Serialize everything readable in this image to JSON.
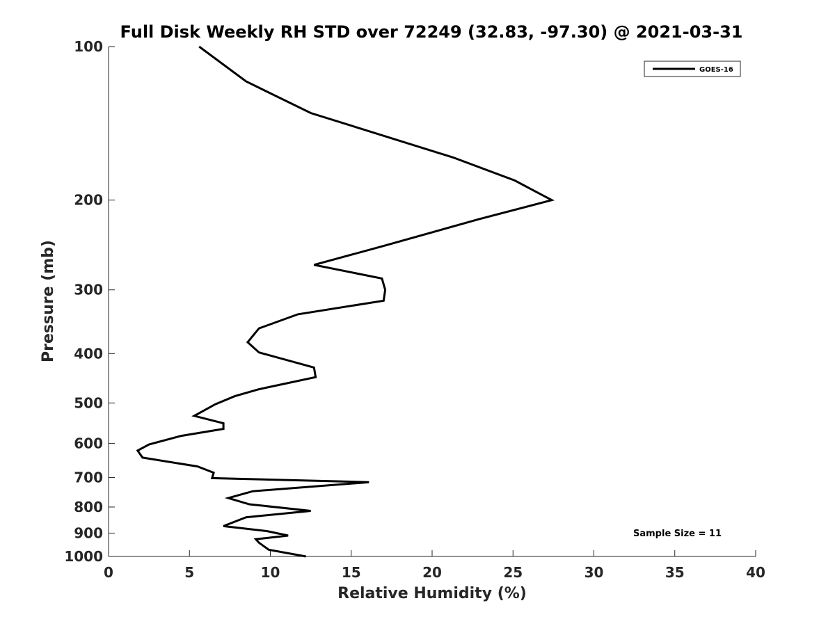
{
  "chart_data": {
    "type": "line",
    "title": "Full Disk Weekly RH STD over 72249 (32.83, -97.30) @ 2021-03-31",
    "xlabel": "Relative Humidity (%)",
    "ylabel": "Pressure (mb)",
    "xlim": [
      0,
      40
    ],
    "ylim": [
      100,
      1000
    ],
    "yscale": "log",
    "y_reversed": true,
    "xticks": [
      "0",
      "5",
      "10",
      "15",
      "20",
      "25",
      "30",
      "35",
      "40"
    ],
    "yticks": [
      "100",
      "200",
      "300",
      "400",
      "500",
      "600",
      "700",
      "800",
      "900",
      "1000"
    ],
    "legend_position": "top-right",
    "annotation": "Sample Size = 11",
    "line_color": "#000000",
    "series": [
      {
        "name": "GOES-16",
        "x": [
          5.6,
          8.5,
          12.5,
          21.3,
          25.1,
          27.4,
          22.9,
          17.0,
          12.7,
          16.9,
          17.1,
          17.0,
          11.7,
          9.3,
          8.6,
          9.3,
          12.7,
          12.8,
          9.3,
          7.8,
          6.6,
          5.3,
          7.1,
          7.1,
          4.5,
          2.5,
          1.8,
          2.1,
          5.5,
          6.5,
          6.4,
          16.1,
          8.9,
          7.4,
          8.7,
          12.5,
          8.5,
          7.1,
          9.8,
          11.1,
          9.1,
          9.3,
          9.9,
          12.2
        ],
        "y": [
          100,
          117,
          135,
          165,
          183,
          200,
          218,
          246,
          268,
          285,
          300,
          315,
          335,
          357,
          380,
          398,
          426,
          445,
          470,
          485,
          503,
          530,
          548,
          562,
          580,
          603,
          620,
          640,
          666,
          685,
          702,
          715,
          745,
          768,
          790,
          814,
          838,
          872,
          892,
          910,
          925,
          940,
          970,
          1000
        ]
      }
    ]
  }
}
